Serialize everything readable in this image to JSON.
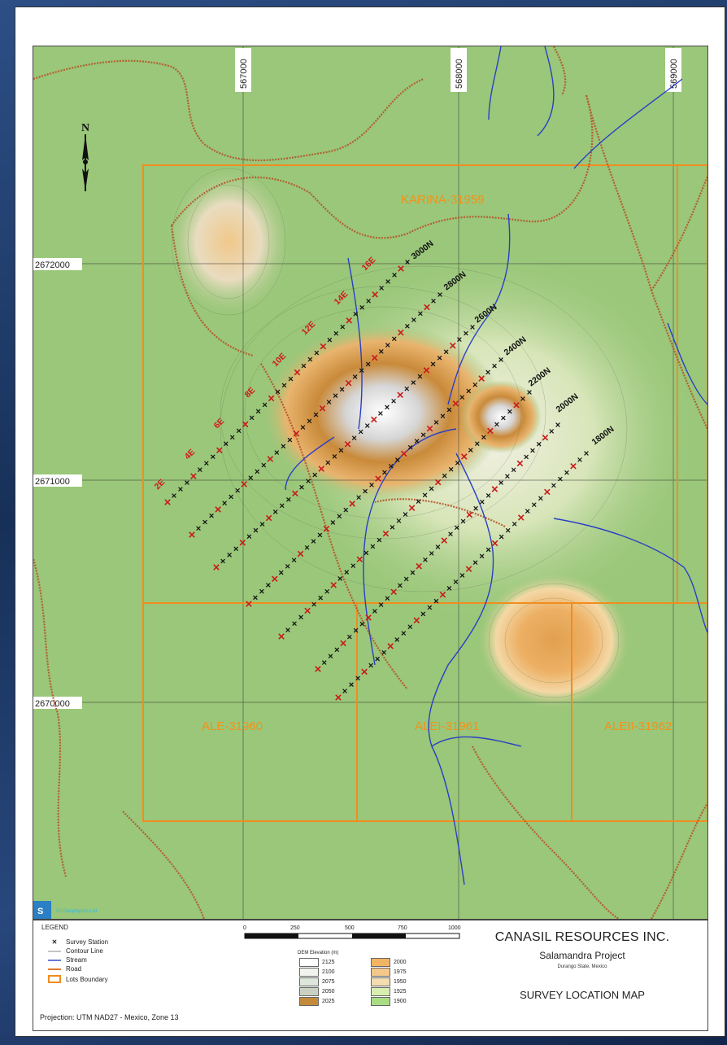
{
  "grid": {
    "eastings": [
      "567000",
      "568000",
      "569000"
    ],
    "northings": [
      "2672000",
      "2671000",
      "2670000"
    ]
  },
  "lots": [
    "KARINA-31959",
    "ALE-31960",
    "ALEI-31961",
    "ALEII-31962"
  ],
  "survey_lines": [
    "3000N",
    "2800N",
    "2600N",
    "2400N",
    "2200N",
    "2000N",
    "1800N"
  ],
  "east_labels": [
    "16E",
    "14E",
    "12E",
    "10E",
    "8E",
    "6E",
    "4E",
    "2E"
  ],
  "north_arrow": "N",
  "legend": {
    "title": "LEGEND",
    "items": [
      {
        "symbol": "survey-station",
        "label": "Survey Station"
      },
      {
        "symbol": "contour-line",
        "label": "Contour Line"
      },
      {
        "symbol": "stream",
        "label": "Stream"
      },
      {
        "symbol": "road",
        "label": "Road"
      },
      {
        "symbol": "lots-boundary",
        "label": "Lots Boundary"
      }
    ],
    "projection": "Projection: UTM NAD27 - Mexico, Zone 13"
  },
  "scale_bar": {
    "ticks": [
      "0",
      "250",
      "500",
      "750",
      "1000"
    ]
  },
  "dem": {
    "title": "DEM Elevation (m)",
    "entries": [
      {
        "value": "2125",
        "color": "#ffffff"
      },
      {
        "value": "2000",
        "color": "#f0b462"
      },
      {
        "value": "2100",
        "color": "#f1f3ef"
      },
      {
        "value": "1975",
        "color": "#f4c889"
      },
      {
        "value": "2075",
        "color": "#dde6da"
      },
      {
        "value": "1950",
        "color": "#f3ddb0"
      },
      {
        "value": "2050",
        "color": "#c9d2c2"
      },
      {
        "value": "1925",
        "color": "#d8eeb0"
      },
      {
        "value": "2025",
        "color": "#c38a3a"
      },
      {
        "value": "1900",
        "color": "#a9dd84"
      }
    ]
  },
  "company": {
    "name": "CANASIL RESOURCES INC.",
    "project": "Salamandra Project",
    "location": "Durango State, Mexico",
    "map_title": "SURVEY LOCATION MAP"
  },
  "logo": {
    "text": "S",
    "caption": "SJ Geophysics Ltd."
  }
}
